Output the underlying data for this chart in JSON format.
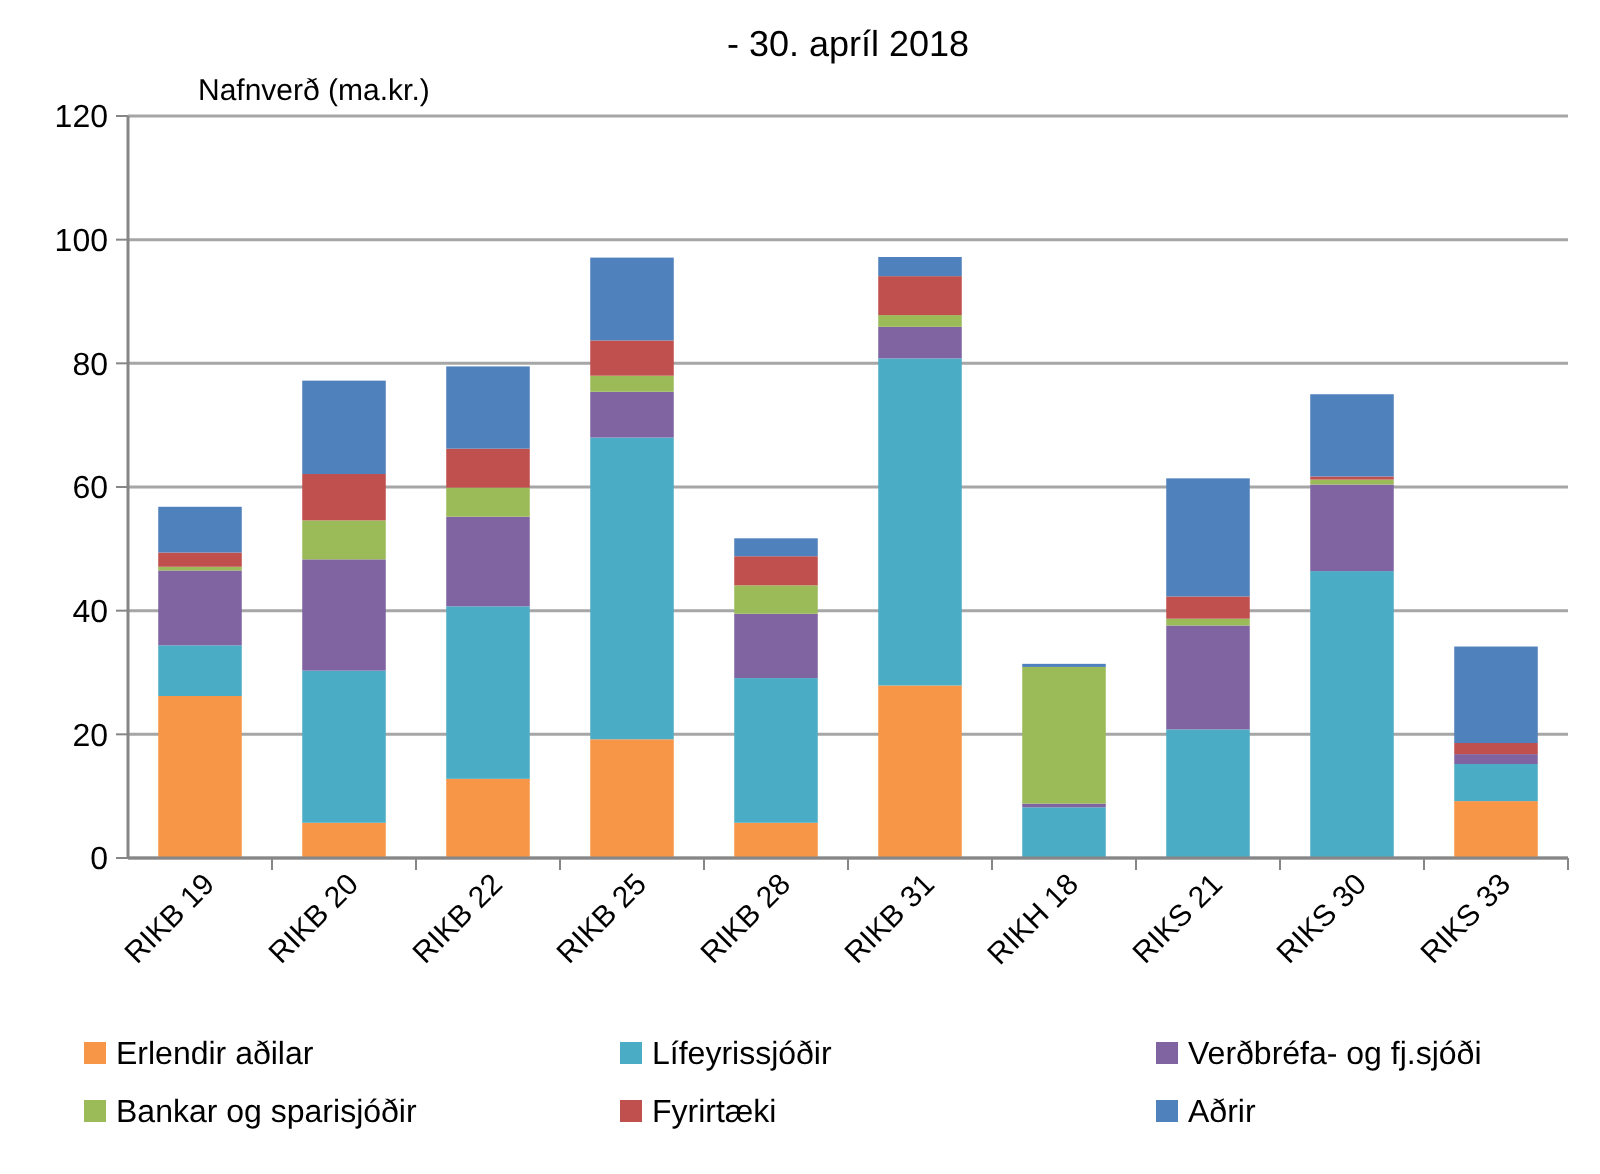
{
  "chart_data": {
    "type": "bar",
    "title": "- 30. apríl 2018",
    "ylabel": "Nafnverð (ma.kr.)",
    "categories": [
      "RIKB 19",
      "RIKB 20",
      "RIKB 22",
      "RIKB 25",
      "RIKB 28",
      "RIKB 31",
      "RIKH 18",
      "RIKS 21",
      "RIKS 30",
      "RIKS 33"
    ],
    "stacked": true,
    "ylim": [
      0,
      120
    ],
    "yticks": [
      0,
      20,
      40,
      60,
      80,
      100,
      120
    ],
    "grid": "y",
    "legend": "bottom",
    "series": [
      {
        "name": "Erlendir aðilar",
        "color": "#f79646",
        "values": [
          26.2,
          5.7,
          12.8,
          19.2,
          5.7,
          27.9,
          0,
          0,
          0,
          9.2
        ]
      },
      {
        "name": "Lífeyrissjóðir",
        "color": "#4bacc6",
        "values": [
          8.2,
          24.6,
          27.9,
          48.8,
          23.4,
          52.9,
          8.2,
          20.8,
          46.4,
          6.0
        ]
      },
      {
        "name": "Verðbréfa- og fj.sjóði",
        "color": "#8064a2",
        "values": [
          12.1,
          18.0,
          14.5,
          7.4,
          10.4,
          5.1,
          0.6,
          16.8,
          14.0,
          1.6
        ]
      },
      {
        "name": "Bankar og sparisjóðir",
        "color": "#9bbb59",
        "values": [
          0.6,
          6.3,
          4.7,
          2.6,
          4.6,
          1.9,
          22.1,
          1.1,
          0.8,
          0
        ]
      },
      {
        "name": "Fyrirtæki",
        "color": "#c0504d",
        "values": [
          2.3,
          7.5,
          6.3,
          5.7,
          4.7,
          6.3,
          0,
          3.6,
          0.5,
          1.8
        ]
      },
      {
        "name": "Aðrir",
        "color": "#4f81bd",
        "values": [
          7.4,
          15.1,
          13.3,
          13.4,
          2.9,
          3.1,
          0.5,
          19.1,
          13.3,
          15.6
        ]
      }
    ]
  }
}
